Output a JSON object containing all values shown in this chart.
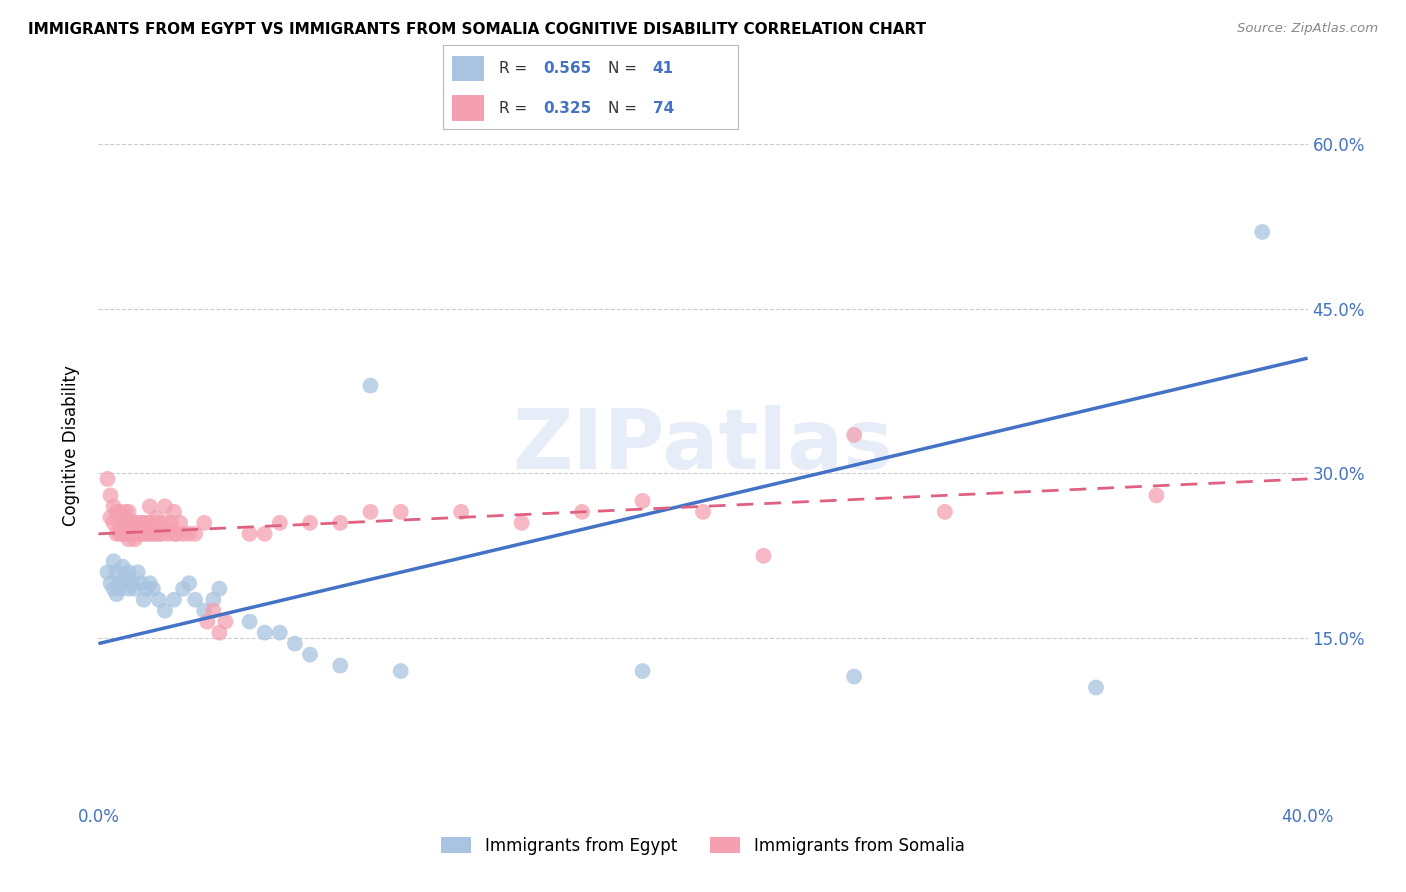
{
  "title": "IMMIGRANTS FROM EGYPT VS IMMIGRANTS FROM SOMALIA COGNITIVE DISABILITY CORRELATION CHART",
  "source": "Source: ZipAtlas.com",
  "ylabel": "Cognitive Disability",
  "xlim": [
    0.0,
    0.4
  ],
  "ylim": [
    0.0,
    0.65
  ],
  "xtick_labels": [
    "0.0%",
    "",
    "",
    "",
    "",
    "",
    "",
    "",
    "40.0%"
  ],
  "xtick_values": [
    0.0,
    0.05,
    0.1,
    0.15,
    0.2,
    0.25,
    0.3,
    0.35,
    0.4
  ],
  "ytick_labels": [
    "15.0%",
    "30.0%",
    "45.0%",
    "60.0%"
  ],
  "ytick_values": [
    0.15,
    0.3,
    0.45,
    0.6
  ],
  "grid_color": "#cccccc",
  "axis_color": "#4472c4",
  "egypt_color": "#a8c4e0",
  "egypt_color_line": "#4472c4",
  "somalia_color": "#f4a0b0",
  "somalia_color_line": "#e06080",
  "R_egypt": 0.565,
  "N_egypt": 41,
  "R_somalia": 0.325,
  "N_somalia": 74,
  "legend_labels": [
    "Immigrants from Egypt",
    "Immigrants from Somalia"
  ],
  "egypt_scatter": [
    [
      0.003,
      0.21
    ],
    [
      0.004,
      0.2
    ],
    [
      0.005,
      0.195
    ],
    [
      0.005,
      0.22
    ],
    [
      0.006,
      0.19
    ],
    [
      0.006,
      0.21
    ],
    [
      0.007,
      0.2
    ],
    [
      0.007,
      0.195
    ],
    [
      0.008,
      0.215
    ],
    [
      0.009,
      0.205
    ],
    [
      0.01,
      0.195
    ],
    [
      0.01,
      0.21
    ],
    [
      0.011,
      0.2
    ],
    [
      0.012,
      0.195
    ],
    [
      0.013,
      0.21
    ],
    [
      0.014,
      0.2
    ],
    [
      0.015,
      0.185
    ],
    [
      0.016,
      0.195
    ],
    [
      0.017,
      0.2
    ],
    [
      0.018,
      0.195
    ],
    [
      0.02,
      0.185
    ],
    [
      0.022,
      0.175
    ],
    [
      0.025,
      0.185
    ],
    [
      0.028,
      0.195
    ],
    [
      0.03,
      0.2
    ],
    [
      0.032,
      0.185
    ],
    [
      0.035,
      0.175
    ],
    [
      0.038,
      0.185
    ],
    [
      0.04,
      0.195
    ],
    [
      0.05,
      0.165
    ],
    [
      0.055,
      0.155
    ],
    [
      0.06,
      0.155
    ],
    [
      0.065,
      0.145
    ],
    [
      0.07,
      0.135
    ],
    [
      0.08,
      0.125
    ],
    [
      0.09,
      0.38
    ],
    [
      0.1,
      0.12
    ],
    [
      0.18,
      0.12
    ],
    [
      0.25,
      0.115
    ],
    [
      0.33,
      0.105
    ],
    [
      0.385,
      0.52
    ]
  ],
  "somalia_scatter": [
    [
      0.003,
      0.295
    ],
    [
      0.004,
      0.28
    ],
    [
      0.004,
      0.26
    ],
    [
      0.005,
      0.255
    ],
    [
      0.005,
      0.27
    ],
    [
      0.006,
      0.245
    ],
    [
      0.006,
      0.265
    ],
    [
      0.007,
      0.255
    ],
    [
      0.007,
      0.245
    ],
    [
      0.007,
      0.265
    ],
    [
      0.008,
      0.245
    ],
    [
      0.008,
      0.255
    ],
    [
      0.008,
      0.26
    ],
    [
      0.009,
      0.245
    ],
    [
      0.009,
      0.255
    ],
    [
      0.009,
      0.265
    ],
    [
      0.01,
      0.245
    ],
    [
      0.01,
      0.255
    ],
    [
      0.01,
      0.24
    ],
    [
      0.01,
      0.265
    ],
    [
      0.011,
      0.245
    ],
    [
      0.011,
      0.255
    ],
    [
      0.012,
      0.24
    ],
    [
      0.012,
      0.255
    ],
    [
      0.013,
      0.245
    ],
    [
      0.013,
      0.255
    ],
    [
      0.014,
      0.245
    ],
    [
      0.014,
      0.255
    ],
    [
      0.015,
      0.245
    ],
    [
      0.015,
      0.255
    ],
    [
      0.016,
      0.245
    ],
    [
      0.016,
      0.255
    ],
    [
      0.017,
      0.245
    ],
    [
      0.017,
      0.255
    ],
    [
      0.017,
      0.27
    ],
    [
      0.018,
      0.245
    ],
    [
      0.018,
      0.255
    ],
    [
      0.019,
      0.245
    ],
    [
      0.019,
      0.26
    ],
    [
      0.02,
      0.245
    ],
    [
      0.02,
      0.255
    ],
    [
      0.021,
      0.245
    ],
    [
      0.022,
      0.255
    ],
    [
      0.022,
      0.27
    ],
    [
      0.023,
      0.245
    ],
    [
      0.024,
      0.255
    ],
    [
      0.025,
      0.245
    ],
    [
      0.025,
      0.265
    ],
    [
      0.026,
      0.245
    ],
    [
      0.027,
      0.255
    ],
    [
      0.028,
      0.245
    ],
    [
      0.03,
      0.245
    ],
    [
      0.032,
      0.245
    ],
    [
      0.035,
      0.255
    ],
    [
      0.036,
      0.165
    ],
    [
      0.038,
      0.175
    ],
    [
      0.04,
      0.155
    ],
    [
      0.042,
      0.165
    ],
    [
      0.05,
      0.245
    ],
    [
      0.055,
      0.245
    ],
    [
      0.06,
      0.255
    ],
    [
      0.07,
      0.255
    ],
    [
      0.08,
      0.255
    ],
    [
      0.09,
      0.265
    ],
    [
      0.1,
      0.265
    ],
    [
      0.12,
      0.265
    ],
    [
      0.14,
      0.255
    ],
    [
      0.16,
      0.265
    ],
    [
      0.18,
      0.275
    ],
    [
      0.2,
      0.265
    ],
    [
      0.22,
      0.225
    ],
    [
      0.25,
      0.335
    ],
    [
      0.28,
      0.265
    ],
    [
      0.35,
      0.28
    ]
  ]
}
